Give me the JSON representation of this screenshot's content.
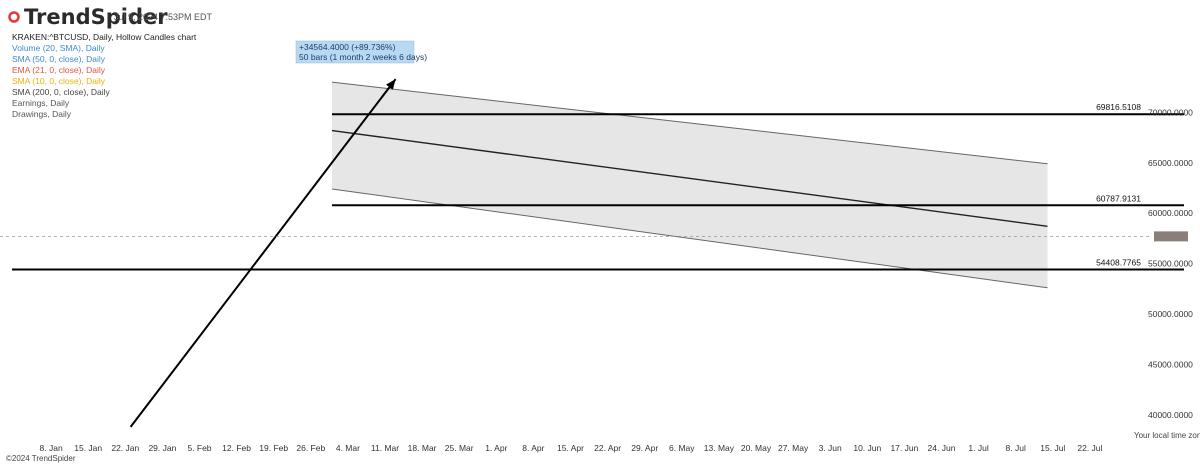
{
  "header": {
    "brand": "TrendSpider",
    "timestamp": "Jul 9, 2024 7:53PM EDT"
  },
  "legend": [
    {
      "text": "KRAKEN:^BTCUSD, Daily, Hollow Candles chart",
      "color": "#222222"
    },
    {
      "text": "Volume (20, SMA), Daily",
      "color": "#3b8ad9"
    },
    {
      "text": "SMA (50, 0, close), Daily",
      "color": "#3b8ad9"
    },
    {
      "text": "EMA (21, 0, close), Daily",
      "color": "#e8533a"
    },
    {
      "text": "SMA (10, 0, close), Daily",
      "color": "#e8b400"
    },
    {
      "text": "SMA (200, 0, close), Daily",
      "color": "#444444"
    },
    {
      "text": "Earnings, Daily",
      "color": "#555555"
    },
    {
      "text": "Drawings, Daily",
      "color": "#555555"
    }
  ],
  "measure": {
    "line1": "+34564.4000 (+89.736%)",
    "line2": "50 bars (1 month 2 weeks 6 days)"
  },
  "footer": {
    "copyright": "©2024 TrendSpider",
    "timezone": "Your local time zone"
  },
  "current_price_color": "#8a7f78",
  "chart_data": {
    "type": "candlestick",
    "title": "KRAKEN:^BTCUSD, Daily, Hollow Candles chart",
    "ylim": [
      37500,
      75000
    ],
    "y_ticks": [
      {
        "value": 70000,
        "label": "70000.0000"
      },
      {
        "value": 65000,
        "label": "65000.0000"
      },
      {
        "value": 60000,
        "label": "60000.0000"
      },
      {
        "value": 55000,
        "label": "55000.0000"
      },
      {
        "value": 50000,
        "label": "50000.0000"
      },
      {
        "value": 45000,
        "label": "45000.0000"
      },
      {
        "value": 40000,
        "label": "40000.0000"
      }
    ],
    "x_ticks": [
      "8. Jan",
      "15. Jan",
      "22. Jan",
      "29. Jan",
      "5. Feb",
      "12. Feb",
      "19. Feb",
      "26. Feb",
      "4. Mar",
      "11. Mar",
      "18. Mar",
      "25. Mar",
      "1. Apr",
      "8. Apr",
      "15. Apr",
      "22. Apr",
      "29. Apr",
      "6. May",
      "13. May",
      "20. May",
      "27. May",
      "3. Jun",
      "10. Jun",
      "17. Jun",
      "24. Jun",
      "1. Jul",
      "8. Jul",
      "15. Jul",
      "22. Jul"
    ],
    "first_date": "2024-01-01",
    "horizontal_levels": [
      {
        "value": 69816.5108,
        "label": "69816.5108"
      },
      {
        "value": 60787.9131,
        "label": "60787.9131"
      },
      {
        "value": 54408.7765,
        "label": "54408.7765"
      }
    ],
    "channel": {
      "upper": [
        {
          "date": "2024-03-01",
          "value": 73000
        },
        {
          "date": "2024-07-14",
          "value": 64900
        }
      ],
      "middle": [
        {
          "date": "2024-03-01",
          "value": 68200
        },
        {
          "date": "2024-07-14",
          "value": 58700
        }
      ],
      "lower": [
        {
          "date": "2024-03-01",
          "value": 62400
        },
        {
          "date": "2024-07-14",
          "value": 52600
        }
      ]
    },
    "measure_arrow": {
      "from_date": "2024-01-23",
      "from_value": 38800,
      "to_date": "2024-03-13",
      "to_value": 73300
    },
    "candles": []
  }
}
